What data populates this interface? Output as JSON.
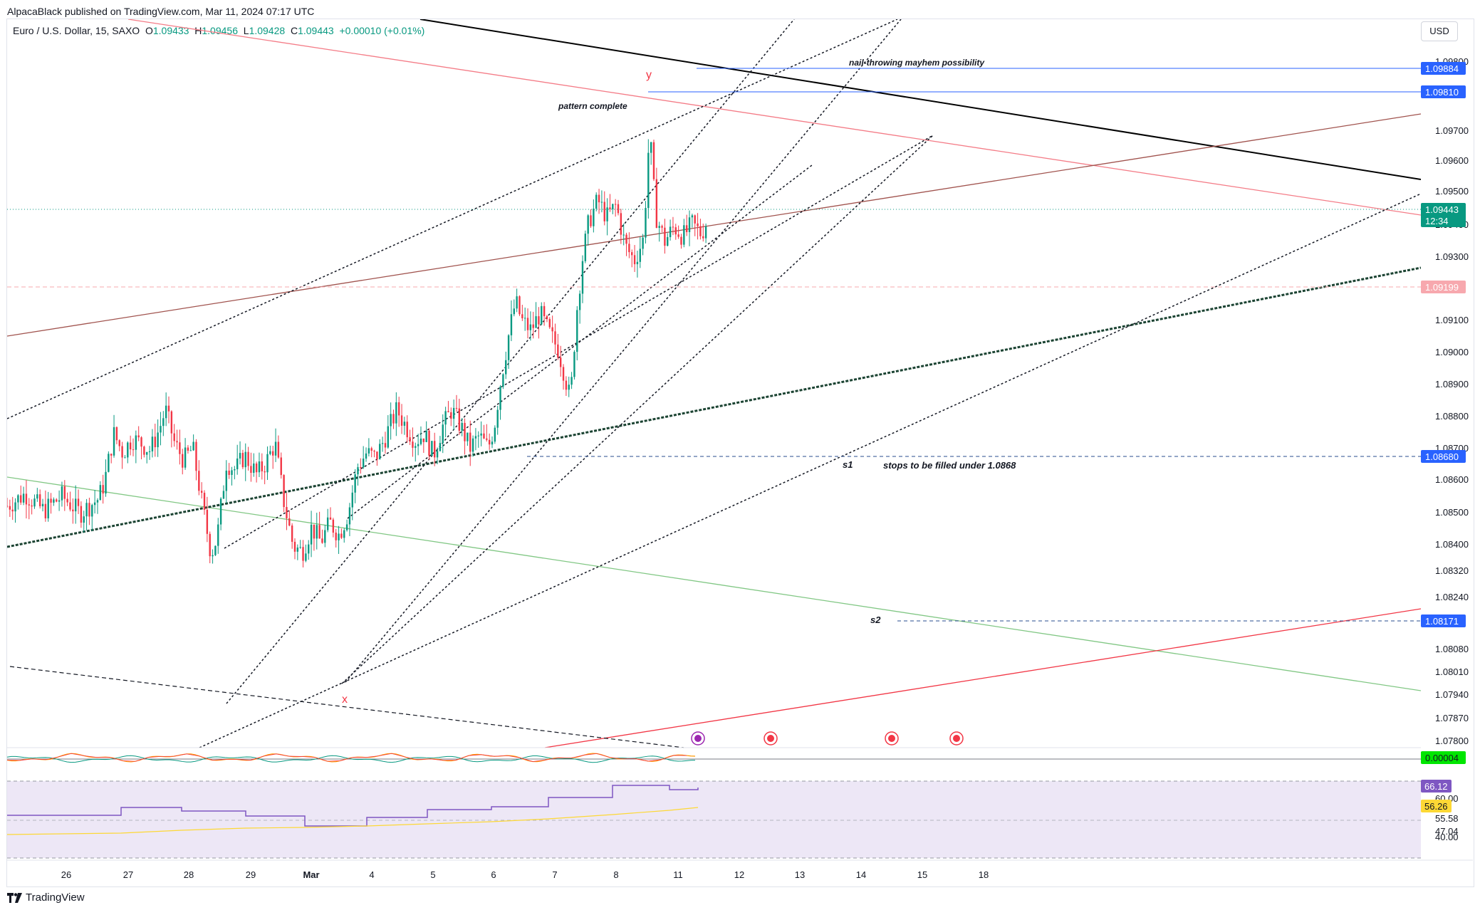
{
  "header": {
    "published_by": "AlpacaBlack published on TradingView.com, Mar 11, 2024 07:17 UTC",
    "symbol": "Euro / U.S. Dollar, 15, SAXO",
    "open_label": "O",
    "open": "1.09433",
    "high_label": "H",
    "high": "1.09456",
    "low_label": "L",
    "low": "1.09428",
    "close_label": "C",
    "close": "1.09443",
    "change": "+0.00010 (+0.01%)"
  },
  "currency_button": "USD",
  "footer": {
    "brand": "TradingView"
  },
  "colors": {
    "up": "#089981",
    "down": "#f23645",
    "blue_line": "#2962ff",
    "black_line": "#000000",
    "brown_line": "#a0524d",
    "pink_line": "#f47c87",
    "green_line": "#81c784",
    "red_line": "#f23645",
    "rsi_bg": "#ede7f6",
    "rsi_line": "#7e57c2",
    "rsi_ma": "#fdd835"
  },
  "chart_data": {
    "type": "candlestick",
    "instrument": "Euro / U.S. Dollar",
    "timeframe": "15",
    "y_axis": {
      "ticks": [
        "1.09800",
        "1.09700",
        "1.09600",
        "1.09500",
        "1.09400",
        "1.09300",
        "1.09100",
        "1.09000",
        "1.08900",
        "1.08800",
        "1.08700",
        "1.08600",
        "1.08500",
        "1.08400",
        "1.08320",
        "1.08240",
        "1.08080",
        "1.08010",
        "1.07940",
        "1.07870",
        "1.07800"
      ],
      "ylim": [
        1.0775,
        1.0992
      ]
    },
    "x_axis": {
      "ticks": [
        "26",
        "27",
        "28",
        "29",
        "Mar",
        "4",
        "5",
        "6",
        "7",
        "8",
        "11",
        "12",
        "13",
        "14",
        "15",
        "18"
      ]
    },
    "price_tags": [
      {
        "label": "1.09884",
        "value": 1.09884,
        "color": "#2962ff"
      },
      {
        "label": "1.09810",
        "value": 1.0981,
        "color": "#2962ff"
      },
      {
        "label": "1.09443",
        "sub": "12:34",
        "value": 1.09443,
        "color": "#089981"
      },
      {
        "label": "1.09199",
        "value": 1.09199,
        "color": "#f7a8ae"
      },
      {
        "label": "1.08680",
        "value": 1.0868,
        "color": "#2962ff"
      },
      {
        "label": "1.08171",
        "value": 1.08171,
        "color": "#2962ff"
      }
    ],
    "annotations": [
      {
        "text": "y",
        "date_index": 10.55,
        "value": 1.0984
      },
      {
        "text": "pattern complete",
        "date_index": 9.6,
        "value": 1.0975
      },
      {
        "text": "nail-throwing mayhem possibility",
        "date_index": 14.0,
        "value": 1.099
      },
      {
        "text": "x",
        "date_index": 5.6,
        "value": 1.0794
      },
      {
        "text": "s1",
        "date_index": 13.7,
        "value": 1.0865
      },
      {
        "text": "stops to be filled under 1.0868",
        "date_index": 15.5,
        "value": 1.0865
      },
      {
        "text": "s2",
        "date_index": 14.2,
        "value": 1.0817
      }
    ],
    "price_path": [
      [
        0,
        1.0825
      ],
      [
        0.3,
        1.083
      ],
      [
        0.6,
        1.0823
      ],
      [
        0.9,
        1.0829
      ],
      [
        1.2,
        1.0822
      ],
      [
        1.5,
        1.0828
      ],
      [
        1.6,
        1.0835
      ],
      [
        1.75,
        1.0855
      ],
      [
        1.9,
        1.0847
      ],
      [
        2.05,
        1.0853
      ],
      [
        2.2,
        1.0851
      ],
      [
        2.35,
        1.0848
      ],
      [
        2.5,
        1.0857
      ],
      [
        2.6,
        1.0865
      ],
      [
        2.75,
        1.0851
      ],
      [
        2.9,
        1.0844
      ],
      [
        3.05,
        1.0849
      ],
      [
        3.2,
        1.0826
      ],
      [
        3.35,
        1.0805
      ],
      [
        3.45,
        1.0812
      ],
      [
        3.6,
        1.0843
      ],
      [
        3.75,
        1.084
      ],
      [
        3.9,
        1.0846
      ],
      [
        4.1,
        1.0838
      ],
      [
        4.25,
        1.0843
      ],
      [
        4.4,
        1.0851
      ],
      [
        4.55,
        1.0826
      ],
      [
        4.7,
        1.0808
      ],
      [
        4.85,
        1.0806
      ],
      [
        5.0,
        1.0816
      ],
      [
        5.15,
        1.081
      ],
      [
        5.3,
        1.0818
      ],
      [
        5.45,
        1.0813
      ],
      [
        5.6,
        1.0822
      ],
      [
        5.75,
        1.0841
      ],
      [
        5.9,
        1.0847
      ],
      [
        6.05,
        1.0845
      ],
      [
        6.2,
        1.0853
      ],
      [
        6.4,
        1.0865
      ],
      [
        6.55,
        1.0858
      ],
      [
        6.7,
        1.0852
      ],
      [
        6.85,
        1.0855
      ],
      [
        7.0,
        1.0846
      ],
      [
        7.15,
        1.0858
      ],
      [
        7.3,
        1.0865
      ],
      [
        7.45,
        1.0858
      ],
      [
        7.6,
        1.0849
      ],
      [
        7.75,
        1.0854
      ],
      [
        7.9,
        1.0849
      ],
      [
        8.0,
        1.0858
      ],
      [
        8.1,
        1.0876
      ],
      [
        8.25,
        1.0898
      ],
      [
        8.35,
        1.091
      ],
      [
        8.45,
        1.0902
      ],
      [
        8.6,
        1.0898
      ],
      [
        8.75,
        1.0905
      ],
      [
        8.9,
        1.0897
      ],
      [
        9.05,
        1.089
      ],
      [
        9.15,
        1.088
      ],
      [
        9.25,
        1.0869
      ],
      [
        9.35,
        1.0905
      ],
      [
        9.45,
        1.0928
      ],
      [
        9.55,
        1.0943
      ],
      [
        9.7,
        1.0952
      ],
      [
        9.85,
        1.0945
      ],
      [
        10.0,
        1.095
      ],
      [
        10.15,
        1.0933
      ],
      [
        10.3,
        1.0927
      ],
      [
        10.45,
        1.0936
      ],
      [
        10.55,
        1.0981
      ],
      [
        10.65,
        1.0946
      ],
      [
        10.8,
        1.0935
      ],
      [
        10.95,
        1.0941
      ],
      [
        11.1,
        1.0937
      ],
      [
        11.25,
        1.0942
      ],
      [
        11.4,
        1.0938
      ],
      [
        11.5,
        1.0944
      ]
    ],
    "rsi": {
      "ticks": [
        "60.00",
        "55.58",
        "47.04",
        "40.00"
      ],
      "value_tags": [
        {
          "label": "66.12",
          "color": "#7e57c2"
        },
        {
          "label": "56.26",
          "color": "#fdd835"
        }
      ]
    },
    "oscillator": {
      "value_tag": "0.00004"
    }
  }
}
